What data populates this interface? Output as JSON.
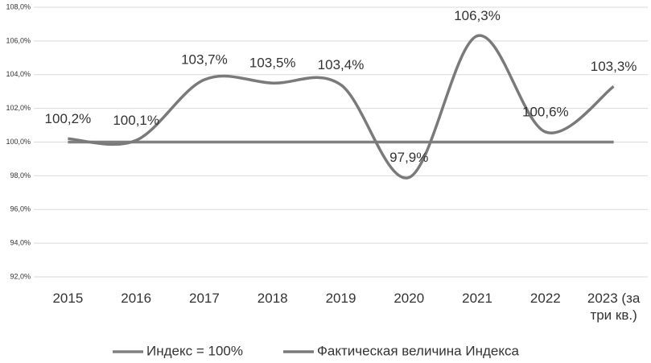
{
  "chart_data": {
    "type": "line",
    "categories": [
      "2015",
      "2016",
      "2017",
      "2018",
      "2019",
      "2020",
      "2021",
      "2022",
      "2023 (за три кв.)"
    ],
    "series": [
      {
        "name": "Индекс = 100%",
        "color": "#808080",
        "values": [
          100,
          100,
          100,
          100,
          100,
          100,
          100,
          100,
          100
        ]
      },
      {
        "name": "Фактическая величина Индекса",
        "color": "#7a7a7a",
        "values": [
          100.2,
          100.1,
          103.7,
          103.5,
          103.4,
          97.9,
          106.3,
          100.6,
          103.3
        ],
        "value_labels": [
          "100,2%",
          "100,1%",
          "103,7%",
          "103,5%",
          "103,4%",
          "97,9%",
          "106,3%",
          "100,6%",
          "103,3%"
        ],
        "smooth": true
      }
    ],
    "ylim": [
      92,
      108
    ],
    "yticks": [
      {
        "value": 92,
        "label": "92,0%"
      },
      {
        "value": 94,
        "label": "94,0%"
      },
      {
        "value": 96,
        "label": "96,0%"
      },
      {
        "value": 98,
        "label": "98,0%"
      },
      {
        "value": 100,
        "label": "100,0%"
      },
      {
        "value": 102,
        "label": "102,0%"
      },
      {
        "value": 104,
        "label": "104,0%"
      },
      {
        "value": 106,
        "label": "106,0%"
      },
      {
        "value": 108,
        "label": "108,0%"
      }
    ],
    "grid": true,
    "legend": "bottom"
  }
}
